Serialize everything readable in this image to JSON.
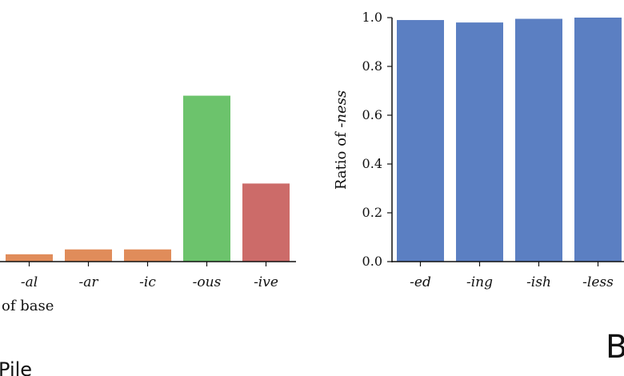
{
  "colors": {
    "orange": "#E08C5A",
    "green": "#6CC36C",
    "red": "#CC6B69",
    "blue": "#5B7FC2",
    "axis": "#111111"
  },
  "left_panel": {
    "xlabel_fragment": "of base",
    "caption_fragment": "Pile"
  },
  "right_panel": {
    "panel_letter_fragment": "B",
    "ylabel_prefix": "Ratio of ",
    "ylabel_italic": "-ness"
  },
  "chart_data": [
    {
      "type": "bar",
      "categories": [
        "-al",
        "-ar",
        "-ic",
        "-ous",
        "-ive"
      ],
      "values": [
        0.03,
        0.05,
        0.05,
        0.68,
        0.32
      ],
      "colors": [
        "#E08C5A",
        "#E08C5A",
        "#E08C5A",
        "#6CC36C",
        "#CC6B69"
      ],
      "ylim": [
        0,
        1
      ],
      "xlabel": "of base",
      "ylabel": "",
      "title": ""
    },
    {
      "type": "bar",
      "categories": [
        "-ed",
        "-ing",
        "-ish",
        "-less"
      ],
      "values": [
        0.99,
        0.98,
        0.995,
        1.0
      ],
      "colors": [
        "#5B7FC2",
        "#5B7FC2",
        "#5B7FC2",
        "#5B7FC2"
      ],
      "ylim": [
        0,
        1
      ],
      "yticks": [
        "0.0",
        "0.2",
        "0.4",
        "0.6",
        "0.8",
        "1.0"
      ],
      "xlabel": "",
      "ylabel": "Ratio of -ness",
      "title": ""
    }
  ]
}
